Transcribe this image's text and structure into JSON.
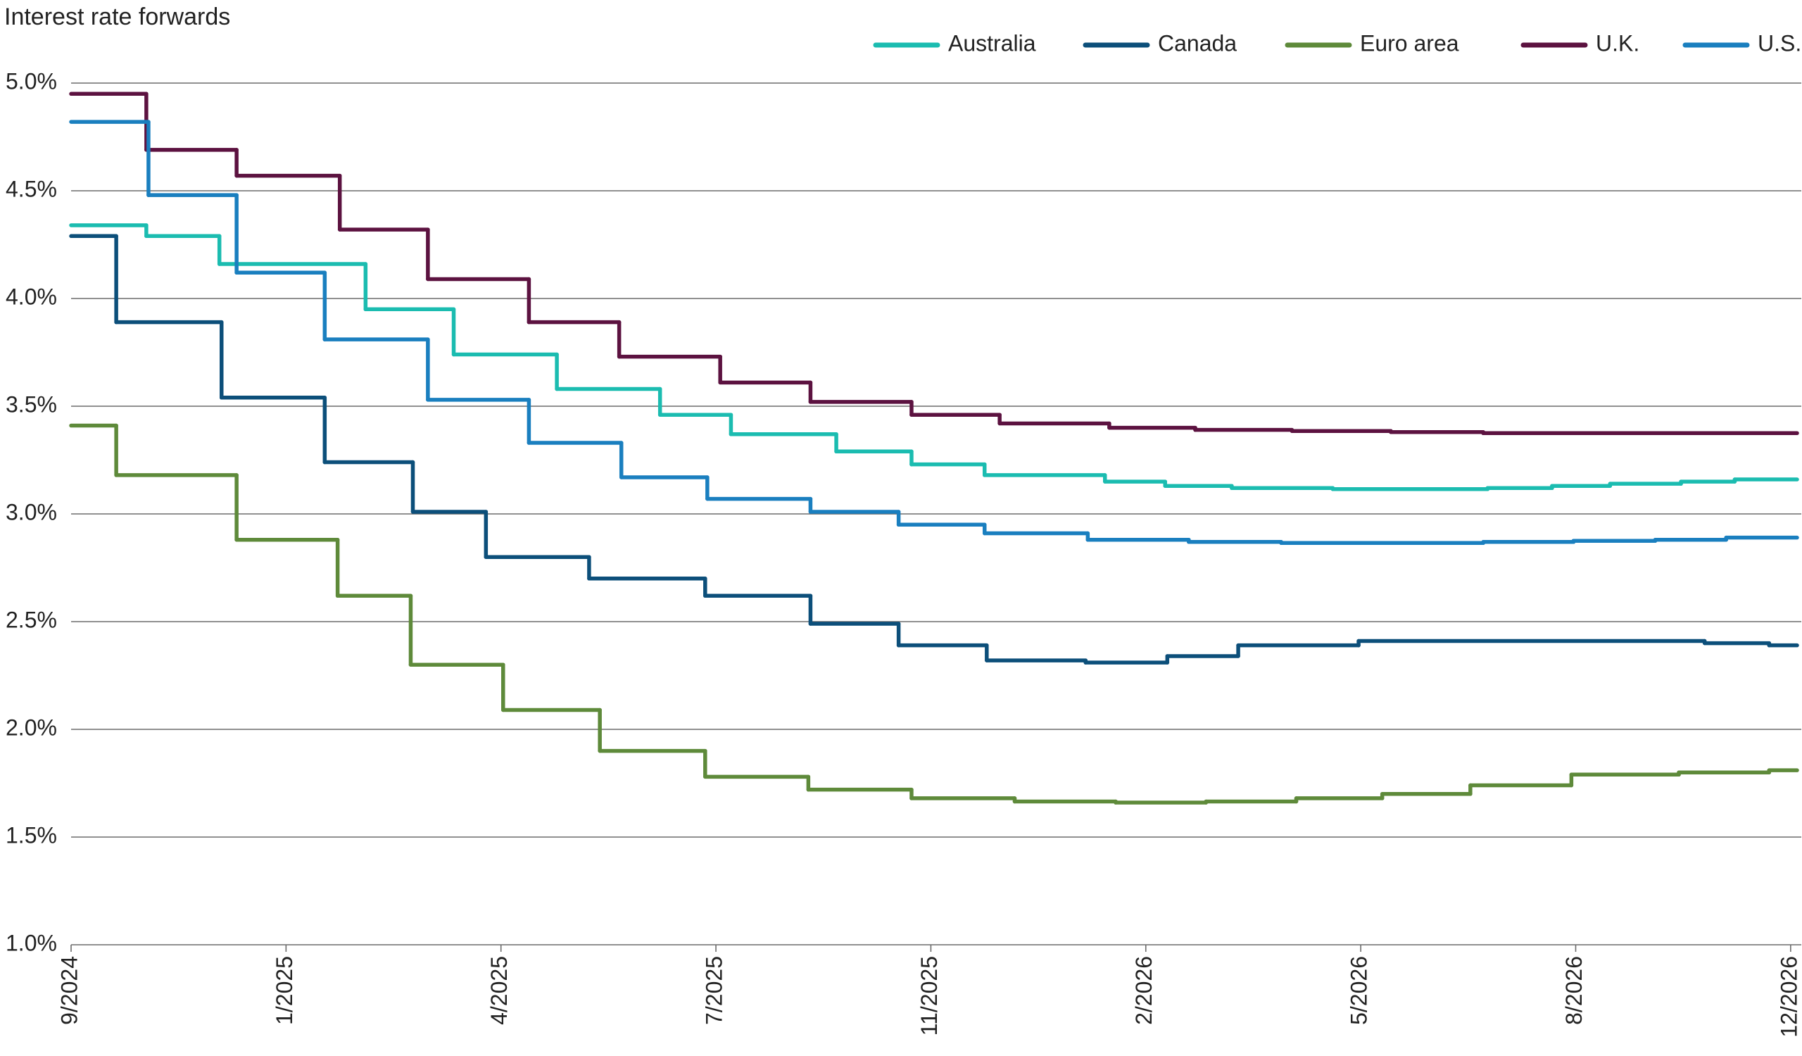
{
  "chart_data": {
    "type": "line",
    "drawstyle": "steps-post",
    "title": "Interest rate forwards",
    "grid": true,
    "xlim": [
      0,
      8.03
    ],
    "xticks": [
      {
        "value": 0,
        "label": "9/2024"
      },
      {
        "value": 1,
        "label": "1/2025"
      },
      {
        "value": 2,
        "label": "4/2025"
      },
      {
        "value": 3,
        "label": "7/2025"
      },
      {
        "value": 4,
        "label": "11/2025"
      },
      {
        "value": 5,
        "label": "2/2026"
      },
      {
        "value": 6,
        "label": "5/2026"
      },
      {
        "value": 7,
        "label": "8/2026"
      },
      {
        "value": 8,
        "label": "12/2026"
      }
    ],
    "ylim": [
      1,
      5
    ],
    "yticks": [
      {
        "value": 1,
        "label": "1.0%"
      },
      {
        "value": 1.5,
        "label": "1.5%"
      },
      {
        "value": 2,
        "label": "2.0%"
      },
      {
        "value": 2.5,
        "label": "2.5%"
      },
      {
        "value": 3,
        "label": "3.0%"
      },
      {
        "value": 3.5,
        "label": "3.5%"
      },
      {
        "value": 4,
        "label": "4.0%"
      },
      {
        "value": 4.5,
        "label": "4.5%"
      },
      {
        "value": 5,
        "label": "5.0%"
      }
    ],
    "series": [
      {
        "name": "Australia",
        "color": "#1bbcb0",
        "x": [
          0,
          0.35,
          0.69,
          1.37,
          1.78,
          2.26,
          2.74,
          3.07,
          3.56,
          3.91,
          4.25,
          4.81,
          5.09,
          5.4,
          5.87,
          6.59,
          6.89,
          7.16,
          7.49,
          7.74
        ],
        "values": [
          4.34,
          4.29,
          4.16,
          3.95,
          3.74,
          3.58,
          3.46,
          3.37,
          3.29,
          3.23,
          3.18,
          3.15,
          3.13,
          3.12,
          3.115,
          3.12,
          3.13,
          3.14,
          3.15,
          3.16
        ]
      },
      {
        "name": "Canada",
        "color": "#0c4f7a",
        "x": [
          0,
          0.21,
          0.7,
          1.18,
          1.59,
          1.93,
          2.41,
          2.95,
          3.44,
          3.85,
          4.26,
          4.72,
          5.1,
          5.43,
          5.99,
          7.6,
          7.9
        ],
        "values": [
          4.29,
          3.89,
          3.54,
          3.24,
          3.01,
          2.8,
          2.7,
          2.62,
          2.49,
          2.39,
          2.32,
          2.31,
          2.34,
          2.39,
          2.41,
          2.4,
          2.39
        ]
      },
      {
        "name": "Euro area",
        "color": "#5e8a3a",
        "x": [
          0,
          0.21,
          0.77,
          1.24,
          1.58,
          2.01,
          2.46,
          2.95,
          3.43,
          3.91,
          4.39,
          4.86,
          5.28,
          5.7,
          6.1,
          6.51,
          6.98,
          7.48,
          7.9
        ],
        "values": [
          3.41,
          3.18,
          2.88,
          2.62,
          2.3,
          2.09,
          1.9,
          1.78,
          1.72,
          1.68,
          1.665,
          1.66,
          1.665,
          1.68,
          1.7,
          1.74,
          1.79,
          1.8,
          1.81
        ]
      },
      {
        "name": "U.K.",
        "color": "#5c1240",
        "x": [
          0,
          0.35,
          0.77,
          1.25,
          1.66,
          2.13,
          2.55,
          3.02,
          3.44,
          3.91,
          4.32,
          4.83,
          5.23,
          5.68,
          6.14,
          6.57
        ],
        "values": [
          4.95,
          4.69,
          4.57,
          4.32,
          4.09,
          3.89,
          3.73,
          3.61,
          3.52,
          3.46,
          3.42,
          3.4,
          3.39,
          3.385,
          3.38,
          3.375
        ]
      },
      {
        "name": "U.S.",
        "color": "#1a7fbf",
        "x": [
          0,
          0.36,
          0.77,
          1.18,
          1.66,
          2.13,
          2.56,
          2.96,
          3.44,
          3.85,
          4.25,
          4.73,
          5.2,
          5.63,
          6.57,
          6.99,
          7.37,
          7.7
        ],
        "values": [
          4.82,
          4.48,
          4.12,
          3.81,
          3.53,
          3.33,
          3.17,
          3.07,
          3.01,
          2.95,
          2.91,
          2.88,
          2.87,
          2.865,
          2.87,
          2.875,
          2.88,
          2.89
        ]
      }
    ]
  }
}
